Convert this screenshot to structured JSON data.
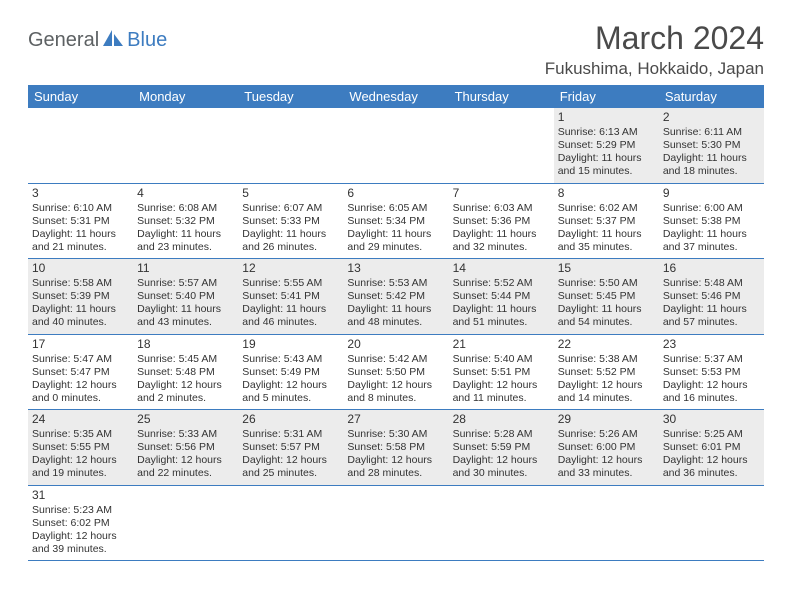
{
  "logo": {
    "general": "General",
    "blue": "Blue",
    "icon_fill": "#3d7cc0"
  },
  "title": {
    "month": "March 2024",
    "location": "Fukushima, Hokkaido, Japan"
  },
  "colors": {
    "header_bg": "#3d7cc0",
    "header_text": "#ffffff",
    "row_alt_bg": "#ececec",
    "border": "#3d7cc0",
    "text": "#333333",
    "logo_gray": "#5d6163"
  },
  "weekdays": [
    "Sunday",
    "Monday",
    "Tuesday",
    "Wednesday",
    "Thursday",
    "Friday",
    "Saturday"
  ],
  "weeks": [
    [
      null,
      null,
      null,
      null,
      null,
      {
        "n": "1",
        "sunrise": "6:13 AM",
        "sunset": "5:29 PM",
        "daylight": "11 hours and 15 minutes."
      },
      {
        "n": "2",
        "sunrise": "6:11 AM",
        "sunset": "5:30 PM",
        "daylight": "11 hours and 18 minutes."
      }
    ],
    [
      {
        "n": "3",
        "sunrise": "6:10 AM",
        "sunset": "5:31 PM",
        "daylight": "11 hours and 21 minutes."
      },
      {
        "n": "4",
        "sunrise": "6:08 AM",
        "sunset": "5:32 PM",
        "daylight": "11 hours and 23 minutes."
      },
      {
        "n": "5",
        "sunrise": "6:07 AM",
        "sunset": "5:33 PM",
        "daylight": "11 hours and 26 minutes."
      },
      {
        "n": "6",
        "sunrise": "6:05 AM",
        "sunset": "5:34 PM",
        "daylight": "11 hours and 29 minutes."
      },
      {
        "n": "7",
        "sunrise": "6:03 AM",
        "sunset": "5:36 PM",
        "daylight": "11 hours and 32 minutes."
      },
      {
        "n": "8",
        "sunrise": "6:02 AM",
        "sunset": "5:37 PM",
        "daylight": "11 hours and 35 minutes."
      },
      {
        "n": "9",
        "sunrise": "6:00 AM",
        "sunset": "5:38 PM",
        "daylight": "11 hours and 37 minutes."
      }
    ],
    [
      {
        "n": "10",
        "sunrise": "5:58 AM",
        "sunset": "5:39 PM",
        "daylight": "11 hours and 40 minutes."
      },
      {
        "n": "11",
        "sunrise": "5:57 AM",
        "sunset": "5:40 PM",
        "daylight": "11 hours and 43 minutes."
      },
      {
        "n": "12",
        "sunrise": "5:55 AM",
        "sunset": "5:41 PM",
        "daylight": "11 hours and 46 minutes."
      },
      {
        "n": "13",
        "sunrise": "5:53 AM",
        "sunset": "5:42 PM",
        "daylight": "11 hours and 48 minutes."
      },
      {
        "n": "14",
        "sunrise": "5:52 AM",
        "sunset": "5:44 PM",
        "daylight": "11 hours and 51 minutes."
      },
      {
        "n": "15",
        "sunrise": "5:50 AM",
        "sunset": "5:45 PM",
        "daylight": "11 hours and 54 minutes."
      },
      {
        "n": "16",
        "sunrise": "5:48 AM",
        "sunset": "5:46 PM",
        "daylight": "11 hours and 57 minutes."
      }
    ],
    [
      {
        "n": "17",
        "sunrise": "5:47 AM",
        "sunset": "5:47 PM",
        "daylight": "12 hours and 0 minutes."
      },
      {
        "n": "18",
        "sunrise": "5:45 AM",
        "sunset": "5:48 PM",
        "daylight": "12 hours and 2 minutes."
      },
      {
        "n": "19",
        "sunrise": "5:43 AM",
        "sunset": "5:49 PM",
        "daylight": "12 hours and 5 minutes."
      },
      {
        "n": "20",
        "sunrise": "5:42 AM",
        "sunset": "5:50 PM",
        "daylight": "12 hours and 8 minutes."
      },
      {
        "n": "21",
        "sunrise": "5:40 AM",
        "sunset": "5:51 PM",
        "daylight": "12 hours and 11 minutes."
      },
      {
        "n": "22",
        "sunrise": "5:38 AM",
        "sunset": "5:52 PM",
        "daylight": "12 hours and 14 minutes."
      },
      {
        "n": "23",
        "sunrise": "5:37 AM",
        "sunset": "5:53 PM",
        "daylight": "12 hours and 16 minutes."
      }
    ],
    [
      {
        "n": "24",
        "sunrise": "5:35 AM",
        "sunset": "5:55 PM",
        "daylight": "12 hours and 19 minutes."
      },
      {
        "n": "25",
        "sunrise": "5:33 AM",
        "sunset": "5:56 PM",
        "daylight": "12 hours and 22 minutes."
      },
      {
        "n": "26",
        "sunrise": "5:31 AM",
        "sunset": "5:57 PM",
        "daylight": "12 hours and 25 minutes."
      },
      {
        "n": "27",
        "sunrise": "5:30 AM",
        "sunset": "5:58 PM",
        "daylight": "12 hours and 28 minutes."
      },
      {
        "n": "28",
        "sunrise": "5:28 AM",
        "sunset": "5:59 PM",
        "daylight": "12 hours and 30 minutes."
      },
      {
        "n": "29",
        "sunrise": "5:26 AM",
        "sunset": "6:00 PM",
        "daylight": "12 hours and 33 minutes."
      },
      {
        "n": "30",
        "sunrise": "5:25 AM",
        "sunset": "6:01 PM",
        "daylight": "12 hours and 36 minutes."
      }
    ],
    [
      {
        "n": "31",
        "sunrise": "5:23 AM",
        "sunset": "6:02 PM",
        "daylight": "12 hours and 39 minutes."
      },
      null,
      null,
      null,
      null,
      null,
      null
    ]
  ]
}
